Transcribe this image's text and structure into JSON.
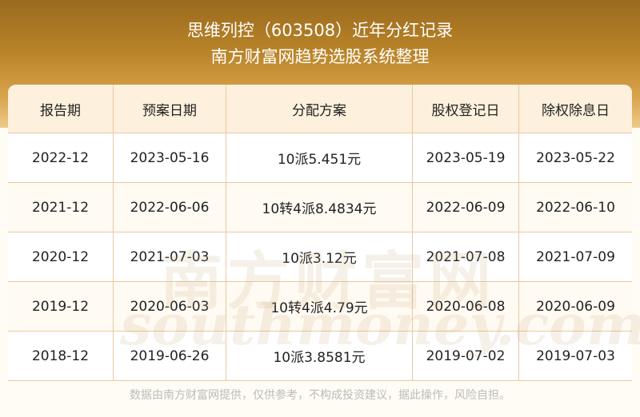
{
  "header": {
    "title": "思维列控（603508）近年分红记录",
    "subtitle": "南方财富网趋势选股系统整理"
  },
  "columns": [
    "报告期",
    "预案日期",
    "分配方案",
    "股权登记日",
    "除权除息日"
  ],
  "rows": [
    [
      "2022-12",
      "2023-05-16",
      "10派5.451元",
      "2023-05-19",
      "2023-05-22"
    ],
    [
      "2021-12",
      "2022-06-06",
      "10转4派8.4834元",
      "2022-06-09",
      "2022-06-10"
    ],
    [
      "2020-12",
      "2021-07-03",
      "10派3.12元",
      "2021-07-08",
      "2021-07-09"
    ],
    [
      "2019-12",
      "2020-06-03",
      "10转4派4.79元",
      "2020-06-08",
      "2020-06-09"
    ],
    [
      "2018-12",
      "2019-06-26",
      "10派3.8581元",
      "2019-07-02",
      "2019-07-03"
    ]
  ],
  "watermark": {
    "cn": "南方财富网",
    "en": "southmoney.com"
  },
  "footer": "数据由南方财富网提供，仅供参考，不构成投资建议，据此操作，风险自担。",
  "colors": {
    "accent": "#b88328",
    "header_row": "#fdf0dc",
    "border": "#e8c9a0"
  }
}
